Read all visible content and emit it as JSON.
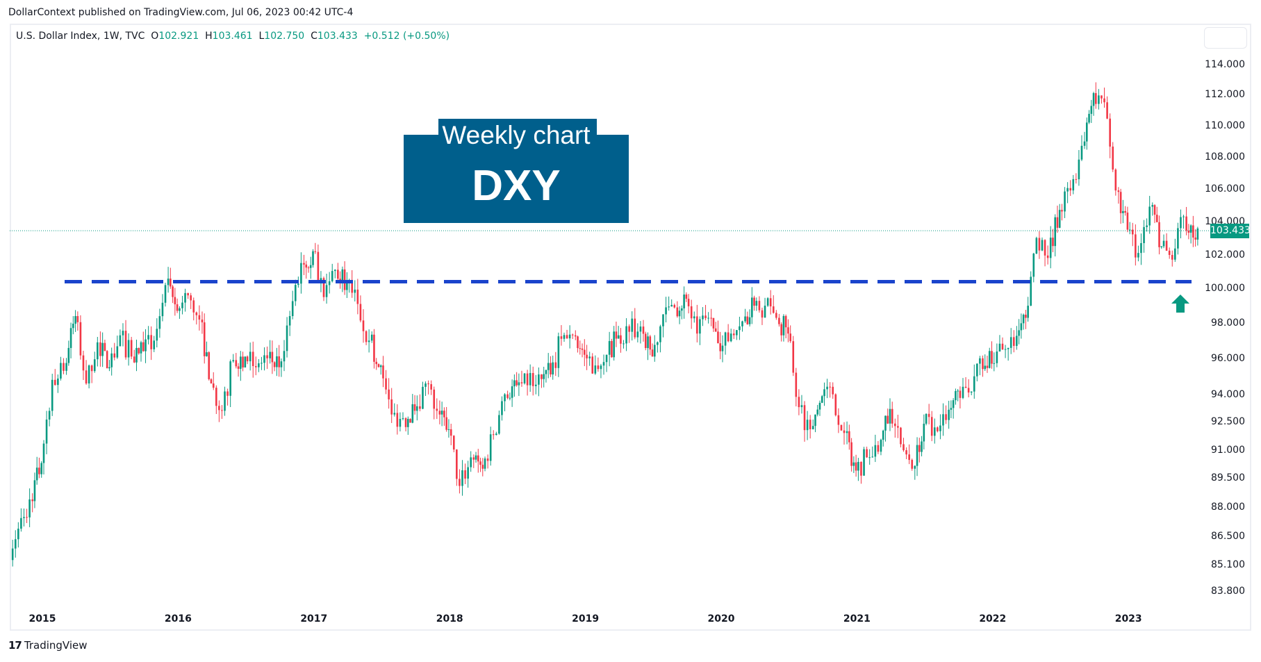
{
  "header": {
    "published": "DollarContext published on TradingView.com, Jul 06, 2023 00:42 UTC-4"
  },
  "legend": {
    "symbol": "U.S. Dollar Index, 1W, TVC",
    "o_label": "O",
    "o": "102.921",
    "h_label": "H",
    "h": "103.461",
    "l_label": "L",
    "l": "102.750",
    "c_label": "C",
    "c": "103.433",
    "change": "+0.512 (+0.50%)"
  },
  "annotation": {
    "line1": "Weekly chart",
    "line2": "DXY"
  },
  "footer": {
    "brand": "TradingView",
    "logo": "TV"
  },
  "colors": {
    "up": "#089981",
    "down": "#f23645",
    "support_line": "#1a44cc",
    "annotation_box": "#005f8c"
  },
  "chart_data": {
    "type": "candlestick",
    "interval": "1W",
    "y_scale": "log",
    "ylim": [
      83.2,
      115.5
    ],
    "y_ticks": [
      "114.000",
      "112.000",
      "110.000",
      "108.000",
      "106.000",
      "104.000",
      "102.000",
      "100.000",
      "98.000",
      "96.000",
      "94.000",
      "92.500",
      "91.000",
      "89.500",
      "88.000",
      "86.500",
      "85.100",
      "83.800"
    ],
    "x_ticks": [
      "2015",
      "2016",
      "2017",
      "2018",
      "2019",
      "2020",
      "2021",
      "2022",
      "2023"
    ],
    "last_price": "103.433",
    "support_level": 100.4,
    "approx_monthly_close": {
      "x": [
        "2014-10",
        "2014-11",
        "2014-12",
        "2015-01",
        "2015-02",
        "2015-03",
        "2015-04",
        "2015-05",
        "2015-06",
        "2015-07",
        "2015-08",
        "2015-09",
        "2015-10",
        "2015-11",
        "2015-12",
        "2016-01",
        "2016-02",
        "2016-03",
        "2016-04",
        "2016-05",
        "2016-06",
        "2016-07",
        "2016-08",
        "2016-09",
        "2016-10",
        "2016-11",
        "2016-12",
        "2017-01",
        "2017-02",
        "2017-03",
        "2017-04",
        "2017-05",
        "2017-06",
        "2017-07",
        "2017-08",
        "2017-09",
        "2017-10",
        "2017-11",
        "2017-12",
        "2018-01",
        "2018-02",
        "2018-03",
        "2018-04",
        "2018-05",
        "2018-06",
        "2018-07",
        "2018-08",
        "2018-09",
        "2018-10",
        "2018-11",
        "2018-12",
        "2019-01",
        "2019-02",
        "2019-03",
        "2019-04",
        "2019-05",
        "2019-06",
        "2019-07",
        "2019-08",
        "2019-09",
        "2019-10",
        "2019-11",
        "2019-12",
        "2020-01",
        "2020-02",
        "2020-03",
        "2020-04",
        "2020-05",
        "2020-06",
        "2020-07",
        "2020-08",
        "2020-09",
        "2020-10",
        "2020-11",
        "2020-12",
        "2021-01",
        "2021-02",
        "2021-03",
        "2021-04",
        "2021-05",
        "2021-06",
        "2021-07",
        "2021-08",
        "2021-09",
        "2021-10",
        "2021-11",
        "2021-12",
        "2022-01",
        "2022-02",
        "2022-03",
        "2022-04",
        "2022-05",
        "2022-06",
        "2022-07",
        "2022-08",
        "2022-09",
        "2022-10",
        "2022-11",
        "2022-12",
        "2023-01",
        "2023-02",
        "2023-03",
        "2023-04",
        "2023-05",
        "2023-06",
        "2023-07"
      ],
      "close": [
        86.9,
        88.4,
        90.3,
        94.8,
        95.3,
        98.4,
        94.6,
        96.9,
        95.5,
        97.3,
        96.1,
        96.4,
        97.0,
        100.2,
        98.7,
        99.6,
        98.2,
        94.6,
        93.1,
        95.9,
        96.1,
        95.5,
        96.0,
        95.5,
        98.4,
        101.5,
        102.2,
        99.5,
        101.1,
        100.4,
        99.1,
        97.0,
        95.6,
        92.9,
        92.7,
        93.1,
        94.6,
        93.1,
        92.1,
        89.1,
        90.6,
        90.0,
        91.8,
        94.0,
        94.5,
        94.5,
        95.1,
        95.1,
        97.1,
        97.3,
        96.2,
        95.6,
        96.2,
        97.3,
        97.5,
        97.8,
        96.1,
        98.5,
        98.9,
        99.4,
        97.4,
        98.3,
        96.4,
        97.4,
        98.1,
        99.0,
        99.0,
        98.3,
        97.4,
        93.3,
        92.1,
        93.9,
        94.0,
        91.9,
        89.9,
        90.6,
        90.9,
        93.2,
        91.3,
        90.0,
        92.4,
        92.2,
        92.6,
        94.2,
        94.1,
        96.0,
        95.7,
        96.5,
        96.7,
        98.3,
        103.0,
        101.8,
        104.7,
        105.9,
        108.7,
        112.1,
        111.5,
        105.9,
        103.5,
        102.1,
        104.9,
        102.5,
        101.7,
        104.3,
        102.9,
        103.4
      ]
    }
  }
}
